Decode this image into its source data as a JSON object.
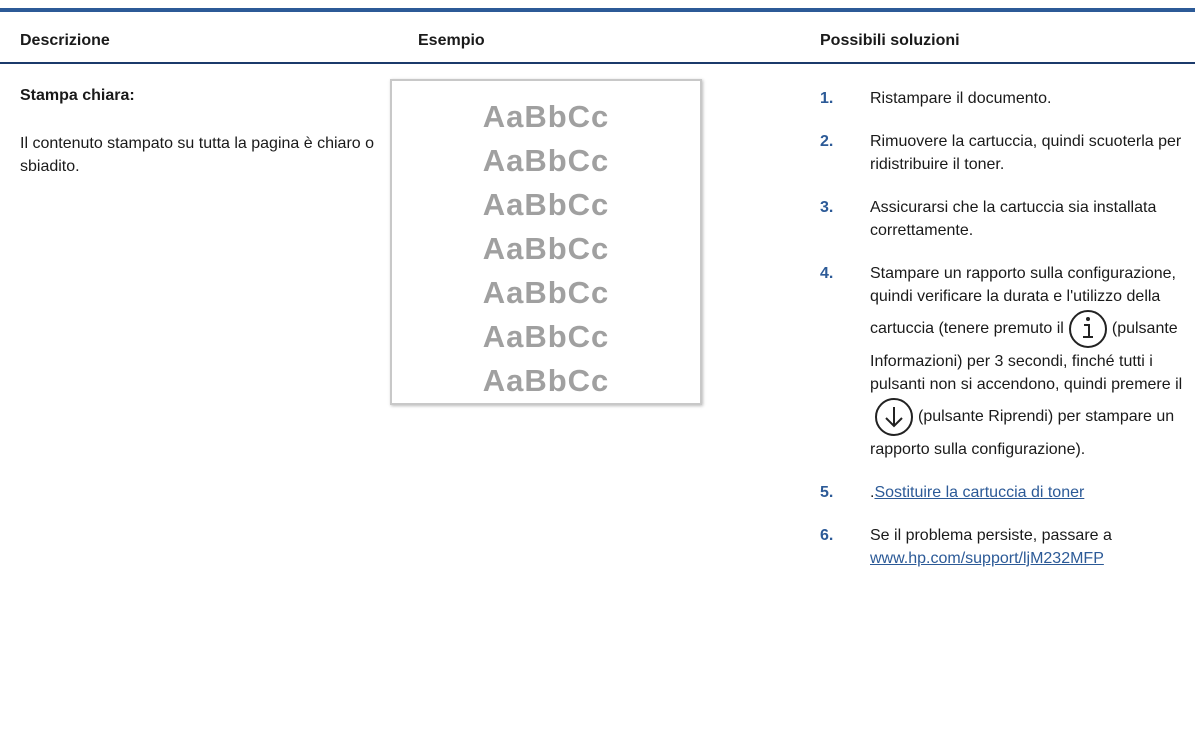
{
  "header": {
    "columns": [
      "Descrizione",
      "Esempio",
      "Possibili soluzioni"
    ]
  },
  "row": {
    "title": "Stampa chiara:",
    "description": "Il contenuto stampato su tutta la pagina è chiaro o sbiadito.",
    "example": {
      "lines": [
        "AaBbCc",
        "AaBbCc",
        "AaBbCc",
        "AaBbCc",
        "AaBbCc",
        "AaBbCc",
        "AaBbCc"
      ]
    },
    "solutions": [
      {
        "number": "1.",
        "text": "Ristampare il documento."
      },
      {
        "number": "2.",
        "text": "Rimuovere la cartuccia, quindi scuoterla per ridistribuire il toner."
      },
      {
        "number": "3.",
        "text": "Assicurarsi che la cartuccia sia installata correttamente."
      },
      {
        "number": "4.",
        "parts": [
          "Stampare un rapporto sulla configurazione, quindi verificare la durata e l'utilizzo della cartuccia (tenere premuto il",
          "(pulsante Informazioni) per 3 secondi, finché tutti i pulsanti non si accendono, quindi premere il",
          "(pulsante Riprendi) per stampare un rapporto sulla configurazione)."
        ]
      },
      {
        "number": "5.",
        "text": ".",
        "link": "Sostituire la cartuccia di toner"
      },
      {
        "number": "6.",
        "text": "Se il problema persiste, passare a",
        "link": "www.hp.com/support/ljM232MFP"
      }
    ]
  }
}
